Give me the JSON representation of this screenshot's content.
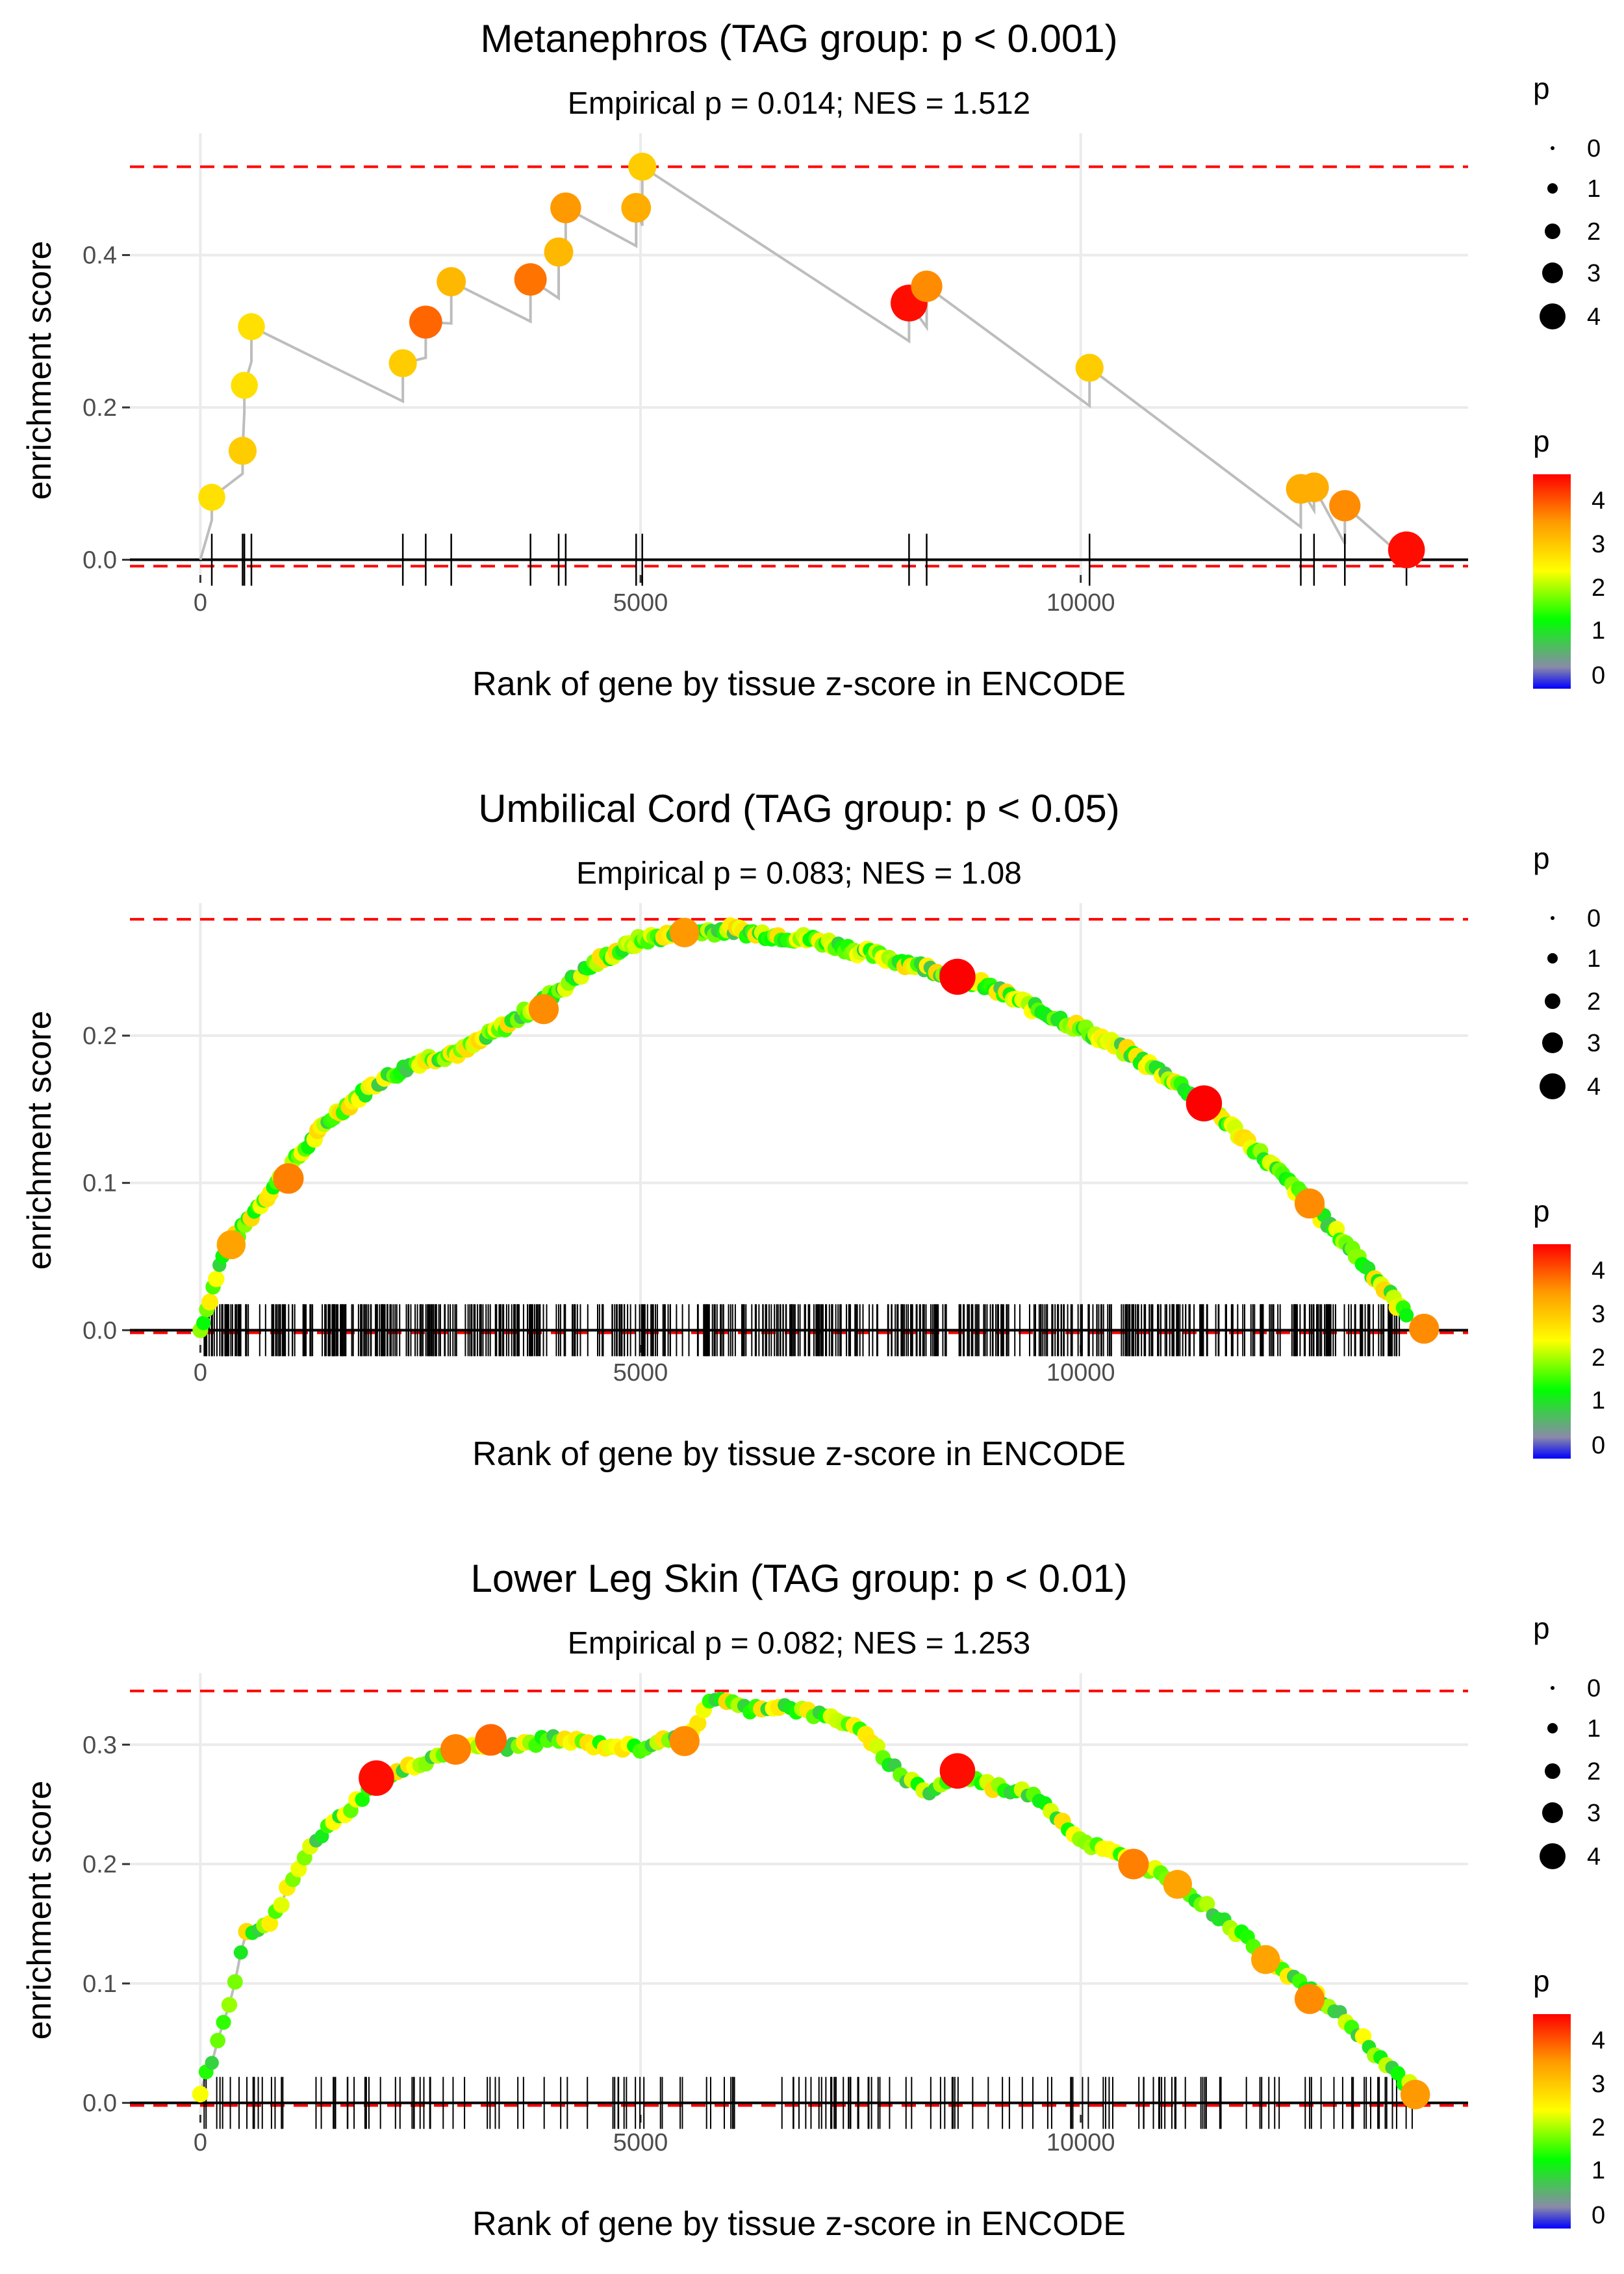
{
  "colors": {
    "grid": "#ebebeb",
    "path": "#bdbdbd",
    "dashed": "#ff0000",
    "tick_text": "#4d4d4d",
    "gradient": [
      "#0000ff",
      "#8a8aa8",
      "#00ff00",
      "#ffff00",
      "#ff9900",
      "#ff0000"
    ]
  },
  "chart_data": [
    {
      "type": "scatter",
      "title": "Metanephros (TAG group: p < 0.001)",
      "subtitle": "Empirical p = 0.014; NES = 1.512",
      "xlabel": "Rank of gene by tissue z-score in ENCODE",
      "ylabel": "enrichment score",
      "xlim": [
        -800,
        14400
      ],
      "ylim": [
        -0.02,
        0.56
      ],
      "xticks": [
        0,
        5000,
        10000
      ],
      "xtick_labels": [
        "0",
        "5000",
        "10000"
      ],
      "yticks": [
        0.0,
        0.2,
        0.4
      ],
      "ytick_labels": [
        "0.0",
        "0.2",
        "0.4"
      ],
      "max_es": 0.516,
      "min_es": -0.005,
      "n_genes": 13700,
      "hits": [
        {
          "rank": 130,
          "es": 0.082,
          "p": 2.8
        },
        {
          "rank": 480,
          "es": 0.143,
          "p": 3.0
        },
        {
          "rank": 500,
          "es": 0.229,
          "p": 2.8
        },
        {
          "rank": 580,
          "es": 0.306,
          "p": 2.8
        },
        {
          "rank": 2300,
          "es": 0.258,
          "p": 3.0
        },
        {
          "rank": 2560,
          "es": 0.312,
          "p": 3.9
        },
        {
          "rank": 2850,
          "es": 0.365,
          "p": 3.2
        },
        {
          "rank": 3750,
          "es": 0.368,
          "p": 3.8
        },
        {
          "rank": 4070,
          "es": 0.404,
          "p": 3.2
        },
        {
          "rank": 4150,
          "es": 0.462,
          "p": 3.5
        },
        {
          "rank": 4950,
          "es": 0.462,
          "p": 3.3
        },
        {
          "rank": 5020,
          "es": 0.516,
          "p": 3.0
        },
        {
          "rank": 8050,
          "es": 0.337,
          "p": 4.6
        },
        {
          "rank": 8250,
          "es": 0.359,
          "p": 3.6
        },
        {
          "rank": 10100,
          "es": 0.252,
          "p": 3.0
        },
        {
          "rank": 12500,
          "es": 0.093,
          "p": 3.3
        },
        {
          "rank": 12650,
          "es": 0.095,
          "p": 3.3
        },
        {
          "rank": 13000,
          "es": 0.071,
          "p": 3.6
        },
        {
          "rank": 13700,
          "es": 0.013,
          "p": 4.6
        }
      ],
      "size_legend": {
        "title": "p",
        "labels": [
          "0",
          "1",
          "2",
          "3",
          "4"
        ]
      },
      "color_legend": {
        "title": "p",
        "labels": [
          "4",
          "3",
          "2",
          "1",
          "0"
        ]
      }
    },
    {
      "type": "scatter",
      "title": "Umbilical Cord (TAG group: p < 0.05)",
      "subtitle": "Empirical p = 0.083; NES = 1.08",
      "xlabel": "Rank of gene by tissue z-score in ENCODE",
      "ylabel": "enrichment score",
      "xlim": [
        -800,
        14400
      ],
      "ylim": [
        -0.01,
        0.29
      ],
      "xticks": [
        0,
        5000,
        10000
      ],
      "xtick_labels": [
        "0",
        "5000",
        "10000"
      ],
      "yticks": [
        0.0,
        0.1,
        0.2
      ],
      "ytick_labels": [
        "0.0",
        "0.1",
        "0.2"
      ],
      "max_es": 0.279,
      "min_es": 0.0,
      "n_genes": 13800,
      "curve": [
        [
          0,
          0.0
        ],
        [
          250,
          0.05
        ],
        [
          600,
          0.08
        ],
        [
          1000,
          0.11
        ],
        [
          1500,
          0.145
        ],
        [
          2000,
          0.168
        ],
        [
          2500,
          0.183
        ],
        [
          3000,
          0.19
        ],
        [
          3500,
          0.208
        ],
        [
          4000,
          0.228
        ],
        [
          4500,
          0.25
        ],
        [
          5000,
          0.265
        ],
        [
          5500,
          0.27
        ],
        [
          6000,
          0.272
        ],
        [
          6500,
          0.268
        ],
        [
          7000,
          0.265
        ],
        [
          7500,
          0.257
        ],
        [
          8000,
          0.25
        ],
        [
          8500,
          0.242
        ],
        [
          9000,
          0.232
        ],
        [
          9500,
          0.218
        ],
        [
          10000,
          0.205
        ],
        [
          10500,
          0.19
        ],
        [
          11000,
          0.172
        ],
        [
          11500,
          0.15
        ],
        [
          12000,
          0.122
        ],
        [
          12500,
          0.092
        ],
        [
          13000,
          0.06
        ],
        [
          13500,
          0.025
        ],
        [
          13700,
          0.01
        ]
      ],
      "highlights": [
        {
          "rank": 350,
          "es": 0.058,
          "p": 3.4
        },
        {
          "rank": 1000,
          "es": 0.103,
          "p": 3.7
        },
        {
          "rank": 3900,
          "es": 0.218,
          "p": 3.6
        },
        {
          "rank": 5500,
          "es": 0.27,
          "p": 3.5
        },
        {
          "rank": 8600,
          "es": 0.24,
          "p": 4.7
        },
        {
          "rank": 11400,
          "es": 0.154,
          "p": 4.7
        },
        {
          "rank": 12600,
          "es": 0.086,
          "p": 3.6
        },
        {
          "rank": 13900,
          "es": 0.001,
          "p": 3.6
        }
      ],
      "size_legend": {
        "title": "p",
        "labels": [
          "0",
          "1",
          "2",
          "3",
          "4"
        ]
      },
      "color_legend": {
        "title": "p",
        "labels": [
          "4",
          "3",
          "2",
          "1",
          "0"
        ]
      }
    },
    {
      "type": "scatter",
      "title": "Lower Leg Skin (TAG group: p < 0.01)",
      "subtitle": "Empirical p = 0.082; NES = 1.253",
      "xlabel": "Rank of gene by tissue z-score in ENCODE",
      "ylabel": "enrichment score",
      "xlim": [
        -800,
        14400
      ],
      "ylim": [
        -0.01,
        0.36
      ],
      "xticks": [
        0,
        5000,
        10000
      ],
      "xtick_labels": [
        "0",
        "5000",
        "10000"
      ],
      "yticks": [
        0.0,
        0.1,
        0.2,
        0.3
      ],
      "ytick_labels": [
        "0.0",
        "0.1",
        "0.2",
        "0.3"
      ],
      "max_es": 0.345,
      "min_es": 0.0,
      "n_genes": 13800,
      "curve": [
        [
          0,
          0.01
        ],
        [
          200,
          0.05
        ],
        [
          400,
          0.1
        ],
        [
          500,
          0.14
        ],
        [
          800,
          0.15
        ],
        [
          1000,
          0.18
        ],
        [
          1300,
          0.22
        ],
        [
          1600,
          0.24
        ],
        [
          2000,
          0.268
        ],
        [
          2500,
          0.285
        ],
        [
          3000,
          0.3
        ],
        [
          3500,
          0.298
        ],
        [
          4000,
          0.305
        ],
        [
          4500,
          0.3
        ],
        [
          5000,
          0.297
        ],
        [
          5300,
          0.307
        ],
        [
          5500,
          0.3
        ],
        [
          5800,
          0.34
        ],
        [
          6200,
          0.33
        ],
        [
          6600,
          0.333
        ],
        [
          7000,
          0.325
        ],
        [
          7400,
          0.318
        ],
        [
          8000,
          0.272
        ],
        [
          8300,
          0.26
        ],
        [
          8600,
          0.276
        ],
        [
          9000,
          0.265
        ],
        [
          9500,
          0.258
        ],
        [
          10000,
          0.22
        ],
        [
          10500,
          0.205
        ],
        [
          11000,
          0.19
        ],
        [
          11500,
          0.16
        ],
        [
          12000,
          0.13
        ],
        [
          12500,
          0.1
        ],
        [
          13000,
          0.07
        ],
        [
          13500,
          0.03
        ],
        [
          13800,
          0.01
        ]
      ],
      "highlights": [
        {
          "rank": 2000,
          "es": 0.272,
          "p": 4.6
        },
        {
          "rank": 2900,
          "es": 0.296,
          "p": 3.7
        },
        {
          "rank": 3300,
          "es": 0.304,
          "p": 3.9
        },
        {
          "rank": 5500,
          "es": 0.303,
          "p": 3.6
        },
        {
          "rank": 8600,
          "es": 0.278,
          "p": 4.6
        },
        {
          "rank": 10600,
          "es": 0.2,
          "p": 3.7
        },
        {
          "rank": 11100,
          "es": 0.183,
          "p": 3.4
        },
        {
          "rank": 12100,
          "es": 0.12,
          "p": 3.4
        },
        {
          "rank": 12600,
          "es": 0.087,
          "p": 3.6
        },
        {
          "rank": 13800,
          "es": 0.007,
          "p": 3.5
        }
      ],
      "size_legend": {
        "title": "p",
        "labels": [
          "0",
          "1",
          "2",
          "3",
          "4"
        ]
      },
      "color_legend": {
        "title": "p",
        "labels": [
          "4",
          "3",
          "2",
          "1",
          "0"
        ]
      }
    }
  ]
}
